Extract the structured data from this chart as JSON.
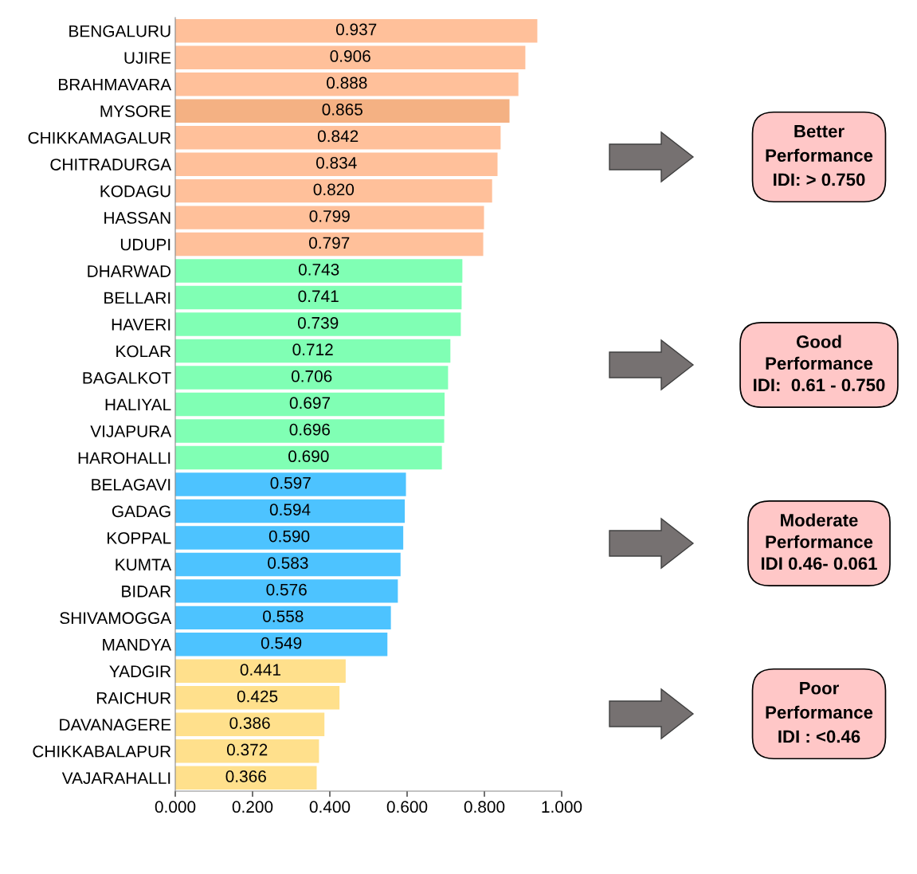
{
  "chart_data": {
    "type": "bar",
    "orientation": "horizontal",
    "categories": [
      "BENGALURU",
      "UJIRE",
      "BRAHMAVARA",
      "MYSORE",
      "CHIKKAMAGALUR",
      "CHITRADURGA",
      "KODAGU",
      "HASSAN",
      "UDUPI",
      "DHARWAD",
      "BELLARI",
      "HAVERI",
      "KOLAR",
      "BAGALKOT",
      "HALIYAL",
      "VIJAPURA",
      "HAROHALLI",
      "BELAGAVI",
      "GADAG",
      "KOPPAL",
      "KUMTA",
      "BIDAR",
      "SHIVAMOGGA",
      "MANDYA",
      "YADGIR",
      "RAICHUR",
      "DAVANAGERE",
      "CHIKKABALAPUR",
      "VAJARAHALLI"
    ],
    "values": [
      0.937,
      0.906,
      0.888,
      0.865,
      0.842,
      0.834,
      0.82,
      0.799,
      0.797,
      0.743,
      0.741,
      0.739,
      0.712,
      0.706,
      0.697,
      0.696,
      0.69,
      0.597,
      0.594,
      0.59,
      0.583,
      0.576,
      0.558,
      0.549,
      0.441,
      0.425,
      0.386,
      0.372,
      0.366
    ],
    "value_labels": [
      "0.937",
      "0.906",
      "0.888",
      "0.865",
      "0.842",
      "0.834",
      "0.820",
      "0.799",
      "0.797",
      "0.743",
      "0.741",
      "0.739",
      "0.712",
      "0.706",
      "0.697",
      "0.696",
      "0.690",
      "0.597",
      "0.594",
      "0.590",
      "0.583",
      "0.576",
      "0.558",
      "0.549",
      "0.441",
      "0.425",
      "0.386",
      "0.372",
      "0.366"
    ],
    "colors": [
      "#ffc09a",
      "#ffc09a",
      "#ffc09a",
      "#f4b183",
      "#ffc09a",
      "#ffc09a",
      "#ffc09a",
      "#ffc09a",
      "#ffc09a",
      "#80ffb4",
      "#80ffb4",
      "#80ffb4",
      "#80ffb4",
      "#80ffb4",
      "#80ffb4",
      "#80ffb4",
      "#80ffb4",
      "#4dc3ff",
      "#4dc3ff",
      "#4dc3ff",
      "#4dc3ff",
      "#4dc3ff",
      "#4dc3ff",
      "#4dc3ff",
      "#ffe08c",
      "#ffe08c",
      "#ffe08c",
      "#ffe08c",
      "#ffe08c"
    ],
    "xlim": [
      0,
      1.0
    ],
    "xticks": [
      {
        "value": 0,
        "label": "0.000"
      },
      {
        "value": 0.2,
        "label": "0.200"
      },
      {
        "value": 0.4,
        "label": "0.400"
      },
      {
        "value": 0.6,
        "label": "0.600"
      },
      {
        "value": 0.8,
        "label": "0.800"
      },
      {
        "value": 1.0,
        "label": "1.000"
      }
    ],
    "annotations": [
      "Better\nPerformance\nIDI: > 0.750",
      "Good\nPerformance\nIDI:  0.61 - 0.750",
      "Moderate\nPerformance\nIDI 0.46- 0.061",
      "Poor\nPerformance\nIDI : <0.46"
    ]
  }
}
